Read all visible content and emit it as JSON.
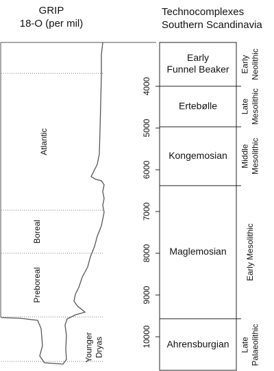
{
  "chart_data": {
    "type": "line",
    "title_left": [
      "GRIP",
      "18-O (per mil)"
    ],
    "title_right": [
      "Technocomplexes",
      "Southern Scandinavia"
    ],
    "ylim": [
      2950,
      10820
    ],
    "yticks": [
      4000,
      5000,
      6000,
      7000,
      8000,
      9000,
      10000
    ],
    "xlim": [
      0,
      228
    ],
    "color": "#555555",
    "x": [
      150,
      148,
      148,
      147,
      146,
      145,
      142,
      138,
      133,
      140,
      148,
      152,
      150,
      152,
      150,
      152,
      148,
      142,
      138,
      132,
      128,
      120,
      115,
      110,
      108,
      113,
      124,
      110,
      98,
      95,
      97,
      96,
      97,
      92,
      65,
      58,
      62,
      60,
      55,
      30,
      2
    ],
    "values": [
      2951,
      3246,
      3738,
      4393,
      5049,
      5623,
      5869,
      6000,
      6164,
      6230,
      6262,
      6361,
      6525,
      6689,
      6852,
      7016,
      7344,
      7590,
      7836,
      8082,
      8328,
      8574,
      8820,
      8984,
      9148,
      9262,
      9410,
      9475,
      9574,
      9721,
      9967,
      10295,
      10541,
      10656,
      10623,
      10459,
      10213,
      9803,
      9607,
      9557,
      9541
    ],
    "climate_boundaries": [
      3689,
      6967,
      8000,
      9525,
      10590
    ],
    "climate_labels": [
      [
        "Atlantic"
      ],
      [
        "Boreal"
      ],
      [
        "Preboreal"
      ],
      [
        "Younger",
        "Dryas"
      ]
    ],
    "tech_boundaries": [
      4000,
      4970,
      6380,
      9570
    ],
    "tech_labels": [
      [
        "Early",
        "Funnel Beaker"
      ],
      [
        "Ertebølle"
      ],
      [
        "Kongemosian"
      ],
      [
        "Maglemosian"
      ],
      [
        "Ahrensburgian"
      ]
    ],
    "period_labels": [
      [
        "Early",
        "Neolithic"
      ],
      [
        "Late",
        "Mesolithic"
      ],
      [
        "Middle",
        "Mesolithic"
      ],
      [
        "Early Mesolithic"
      ],
      [
        "Late",
        "Palaeolithic"
      ]
    ]
  }
}
